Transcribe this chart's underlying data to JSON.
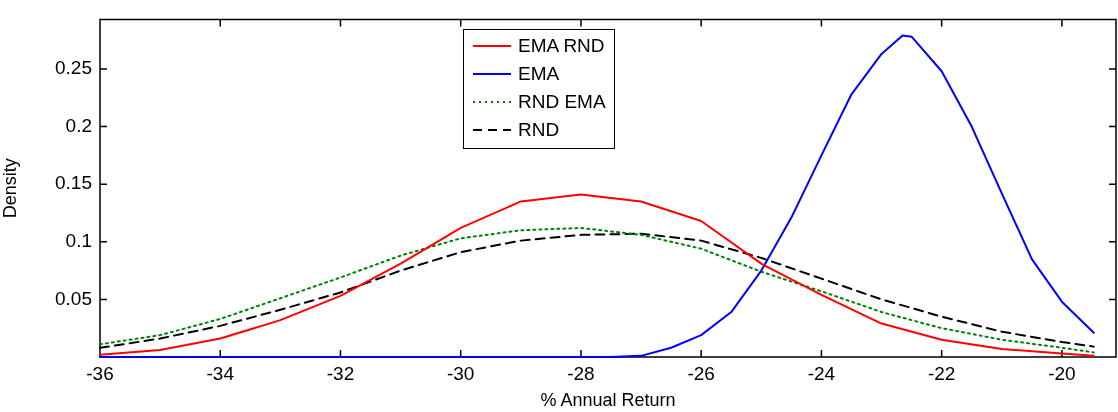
{
  "chart_data": {
    "type": "line",
    "xlabel": "% Annual Return",
    "ylabel": "Density",
    "xlim": [
      -36,
      -19.1
    ],
    "ylim": [
      0,
      0.293
    ],
    "xticks": [
      -36,
      -34,
      -32,
      -30,
      -28,
      -26,
      -24,
      -22,
      -20
    ],
    "yticks": [
      0.05,
      0.1,
      0.15,
      0.2,
      0.25
    ],
    "grid": false,
    "legend": "top",
    "marker": "none",
    "series": [
      {
        "name": "EMA RND",
        "color": "#ff0000",
        "line_style": "solid",
        "x": [
          -36,
          -35,
          -34,
          -33,
          -32,
          -31,
          -30,
          -29,
          -28,
          -27,
          -26,
          -25,
          -24,
          -23,
          -22,
          -21,
          -20,
          -19.47
        ],
        "values": [
          0.002,
          0.006,
          0.016,
          0.032,
          0.053,
          0.081,
          0.112,
          0.135,
          0.141,
          0.135,
          0.118,
          0.081,
          0.054,
          0.029,
          0.015,
          0.007,
          0.003,
          0.001
        ]
      },
      {
        "name": "EMA",
        "color": "#0000ff",
        "line_style": "solid",
        "x": [
          -36,
          -30,
          -28,
          -27.5,
          -27,
          -26.5,
          -26,
          -25.5,
          -25,
          -24.5,
          -24,
          -23.5,
          -23,
          -22.65,
          -22.5,
          -22,
          -21.5,
          -21,
          -20.5,
          -20,
          -19.47
        ],
        "values": [
          0,
          0,
          0,
          0,
          0.001,
          0.008,
          0.019,
          0.039,
          0.075,
          0.121,
          0.175,
          0.228,
          0.263,
          0.279,
          0.278,
          0.248,
          0.2,
          0.142,
          0.085,
          0.048,
          0.021
        ]
      },
      {
        "name": "RND EMA",
        "color": "#008000",
        "line_style": "dotted",
        "x": [
          -36,
          -35,
          -34,
          -33,
          -32,
          -31,
          -30,
          -29,
          -28,
          -27,
          -26,
          -25,
          -24,
          -23,
          -22,
          -21,
          -20,
          -19.47
        ],
        "values": [
          0.011,
          0.019,
          0.033,
          0.051,
          0.069,
          0.088,
          0.103,
          0.11,
          0.112,
          0.106,
          0.094,
          0.074,
          0.057,
          0.039,
          0.025,
          0.015,
          0.008,
          0.004
        ]
      },
      {
        "name": "RND",
        "color": "#000000",
        "line_style": "dashed",
        "x": [
          -36,
          -35,
          -34,
          -33,
          -32,
          -31,
          -30,
          -29,
          -28,
          -27,
          -26,
          -25,
          -24,
          -23,
          -22,
          -21,
          -20,
          -19.47
        ],
        "values": [
          0.008,
          0.016,
          0.027,
          0.041,
          0.056,
          0.075,
          0.091,
          0.101,
          0.106,
          0.107,
          0.101,
          0.086,
          0.068,
          0.05,
          0.035,
          0.022,
          0.013,
          0.009
        ]
      }
    ]
  }
}
